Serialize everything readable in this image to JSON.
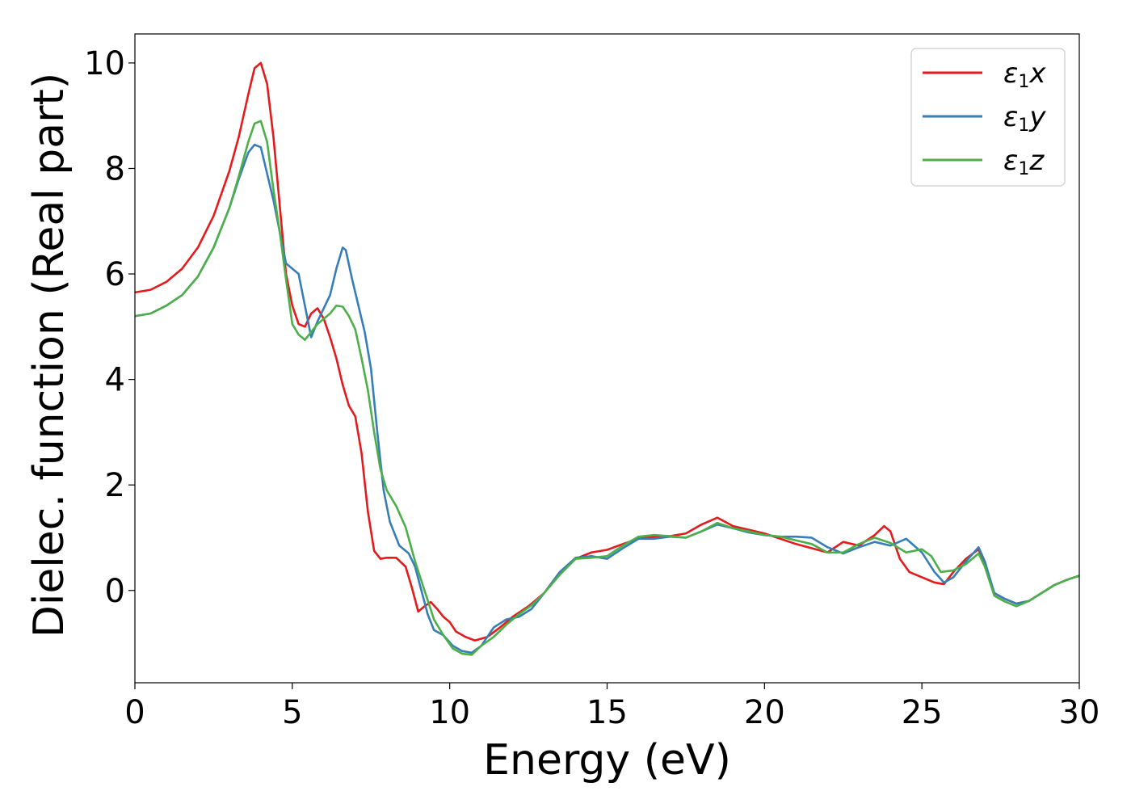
{
  "chart_data": {
    "type": "line",
    "xlabel": "Energy (eV)",
    "ylabel": "Dielec. function (Real part)",
    "xlim": [
      0,
      30
    ],
    "ylim": [
      -1.75,
      10.55
    ],
    "xticks": [
      0,
      5,
      10,
      15,
      20,
      25,
      30
    ],
    "yticks": [
      0,
      2,
      4,
      6,
      8,
      10
    ],
    "grid": false,
    "legend_position": "top-right",
    "series": [
      {
        "name": "ε1x",
        "legend": {
          "main": "ε",
          "sub": "1",
          "tail": "x"
        },
        "color": "#e41a1c",
        "x": [
          0,
          0.5,
          1,
          1.5,
          2,
          2.5,
          3,
          3.3,
          3.6,
          3.8,
          4.0,
          4.2,
          4.4,
          4.6,
          4.8,
          5.0,
          5.2,
          5.4,
          5.6,
          5.8,
          6.0,
          6.2,
          6.4,
          6.6,
          6.8,
          7.0,
          7.2,
          7.4,
          7.6,
          7.8,
          8.0,
          8.3,
          8.6,
          8.8,
          9.0,
          9.2,
          9.4,
          9.6,
          9.8,
          10.0,
          10.2,
          10.5,
          10.8,
          11.2,
          11.6,
          12.0,
          12.5,
          13.0,
          13.5,
          14.0,
          14.5,
          15.0,
          15.5,
          16.0,
          16.5,
          17.0,
          17.5,
          18.0,
          18.5,
          19.0,
          19.5,
          20.0,
          20.5,
          21.0,
          21.5,
          22.0,
          22.5,
          23.0,
          23.5,
          23.8,
          24.0,
          24.3,
          24.6,
          25.0,
          25.4,
          25.7,
          26.0,
          26.4,
          26.8,
          27.0,
          27.3,
          27.6,
          28.0,
          28.4,
          28.8,
          29.2,
          29.6,
          30.0
        ],
        "y": [
          5.65,
          5.7,
          5.85,
          6.1,
          6.5,
          7.1,
          7.95,
          8.6,
          9.4,
          9.9,
          10.0,
          9.6,
          8.6,
          7.3,
          6.0,
          5.4,
          5.05,
          5.0,
          5.25,
          5.35,
          5.15,
          4.8,
          4.4,
          3.9,
          3.5,
          3.3,
          2.6,
          1.5,
          0.75,
          0.6,
          0.62,
          0.62,
          0.45,
          0.05,
          -0.4,
          -0.3,
          -0.22,
          -0.35,
          -0.5,
          -0.6,
          -0.78,
          -0.88,
          -0.95,
          -0.88,
          -0.7,
          -0.5,
          -0.3,
          -0.05,
          0.35,
          0.6,
          0.72,
          0.77,
          0.88,
          0.98,
          1.02,
          1.03,
          1.08,
          1.25,
          1.38,
          1.22,
          1.15,
          1.08,
          0.98,
          0.88,
          0.8,
          0.72,
          0.92,
          0.85,
          1.05,
          1.22,
          1.12,
          0.6,
          0.35,
          0.25,
          0.15,
          0.12,
          0.35,
          0.6,
          0.78,
          0.5,
          -0.05,
          -0.15,
          -0.25,
          -0.2,
          -0.05,
          0.1,
          0.2,
          0.28
        ]
      },
      {
        "name": "ε1y",
        "legend": {
          "main": "ε",
          "sub": "1",
          "tail": "y"
        },
        "color": "#377eb8",
        "x": [
          0,
          0.5,
          1,
          1.5,
          2,
          2.5,
          3,
          3.3,
          3.6,
          3.8,
          4.0,
          4.2,
          4.4,
          4.6,
          4.8,
          5.0,
          5.2,
          5.4,
          5.6,
          5.8,
          6.0,
          6.2,
          6.4,
          6.6,
          6.7,
          6.9,
          7.1,
          7.3,
          7.5,
          7.7,
          7.9,
          8.1,
          8.4,
          8.7,
          8.9,
          9.1,
          9.3,
          9.5,
          9.8,
          10.1,
          10.4,
          10.7,
          11.0,
          11.4,
          11.8,
          12.2,
          12.6,
          13.0,
          13.5,
          14.0,
          14.5,
          15.0,
          15.5,
          16.0,
          16.5,
          17.0,
          17.5,
          18.0,
          18.5,
          19.0,
          19.5,
          20.0,
          20.5,
          21.0,
          21.5,
          22.0,
          22.5,
          23.0,
          23.5,
          24.0,
          24.5,
          25.0,
          25.4,
          25.7,
          26.0,
          26.4,
          26.8,
          27.0,
          27.3,
          27.6,
          28.0,
          28.4,
          28.8,
          29.2,
          29.6,
          30.0
        ],
        "y": [
          5.2,
          5.25,
          5.4,
          5.6,
          5.95,
          6.5,
          7.25,
          7.8,
          8.3,
          8.45,
          8.4,
          7.9,
          7.4,
          6.8,
          6.2,
          6.1,
          6.0,
          5.4,
          4.8,
          5.1,
          5.35,
          5.6,
          6.1,
          6.5,
          6.45,
          5.9,
          5.4,
          4.9,
          4.2,
          3.0,
          1.9,
          1.3,
          0.85,
          0.7,
          0.45,
          0.0,
          -0.45,
          -0.75,
          -0.85,
          -1.05,
          -1.15,
          -1.18,
          -1.05,
          -0.7,
          -0.55,
          -0.5,
          -0.35,
          -0.05,
          0.35,
          0.62,
          0.65,
          0.6,
          0.8,
          0.98,
          0.98,
          1.02,
          1.0,
          1.12,
          1.25,
          1.18,
          1.1,
          1.05,
          1.02,
          1.02,
          1.0,
          0.82,
          0.7,
          0.82,
          0.92,
          0.85,
          0.98,
          0.72,
          0.35,
          0.15,
          0.25,
          0.55,
          0.82,
          0.55,
          -0.05,
          -0.15,
          -0.25,
          -0.2,
          -0.05,
          0.1,
          0.2,
          0.28
        ]
      },
      {
        "name": "ε1z",
        "legend": {
          "main": "ε",
          "sub": "1",
          "tail": "z"
        },
        "color": "#4daf4a",
        "x": [
          0,
          0.5,
          1,
          1.5,
          2,
          2.5,
          3,
          3.3,
          3.6,
          3.8,
          4.0,
          4.2,
          4.4,
          4.6,
          4.8,
          5.0,
          5.2,
          5.4,
          5.6,
          5.8,
          6.0,
          6.2,
          6.4,
          6.6,
          6.8,
          7.0,
          7.2,
          7.4,
          7.6,
          7.8,
          8.0,
          8.3,
          8.6,
          8.9,
          9.2,
          9.5,
          9.8,
          10.1,
          10.4,
          10.7,
          11.0,
          11.4,
          11.8,
          12.2,
          12.6,
          13.0,
          13.5,
          14.0,
          14.5,
          15.0,
          15.5,
          16.0,
          16.5,
          17.0,
          17.5,
          18.0,
          18.5,
          19.0,
          19.5,
          20.0,
          20.5,
          21.0,
          21.5,
          22.0,
          22.5,
          23.0,
          23.5,
          24.0,
          24.5,
          25.0,
          25.3,
          25.6,
          26.0,
          26.4,
          26.8,
          27.0,
          27.3,
          27.6,
          28.0,
          28.4,
          28.8,
          29.2,
          29.6,
          30.0
        ],
        "y": [
          5.2,
          5.25,
          5.4,
          5.6,
          5.95,
          6.5,
          7.25,
          7.85,
          8.5,
          8.85,
          8.9,
          8.5,
          7.6,
          6.8,
          5.9,
          5.05,
          4.85,
          4.75,
          4.9,
          5.05,
          5.15,
          5.25,
          5.4,
          5.38,
          5.2,
          4.95,
          4.4,
          3.8,
          3.0,
          2.3,
          1.9,
          1.6,
          1.2,
          0.55,
          0.0,
          -0.55,
          -0.85,
          -1.1,
          -1.2,
          -1.22,
          -1.05,
          -0.88,
          -0.65,
          -0.45,
          -0.28,
          -0.05,
          0.3,
          0.6,
          0.62,
          0.65,
          0.85,
          1.02,
          1.05,
          1.03,
          1.0,
          1.12,
          1.28,
          1.18,
          1.12,
          1.05,
          1.02,
          0.95,
          0.88,
          0.72,
          0.72,
          0.88,
          1.0,
          0.9,
          0.72,
          0.78,
          0.65,
          0.35,
          0.38,
          0.5,
          0.7,
          0.45,
          -0.1,
          -0.2,
          -0.3,
          -0.2,
          -0.05,
          0.1,
          0.2,
          0.28
        ]
      }
    ]
  }
}
